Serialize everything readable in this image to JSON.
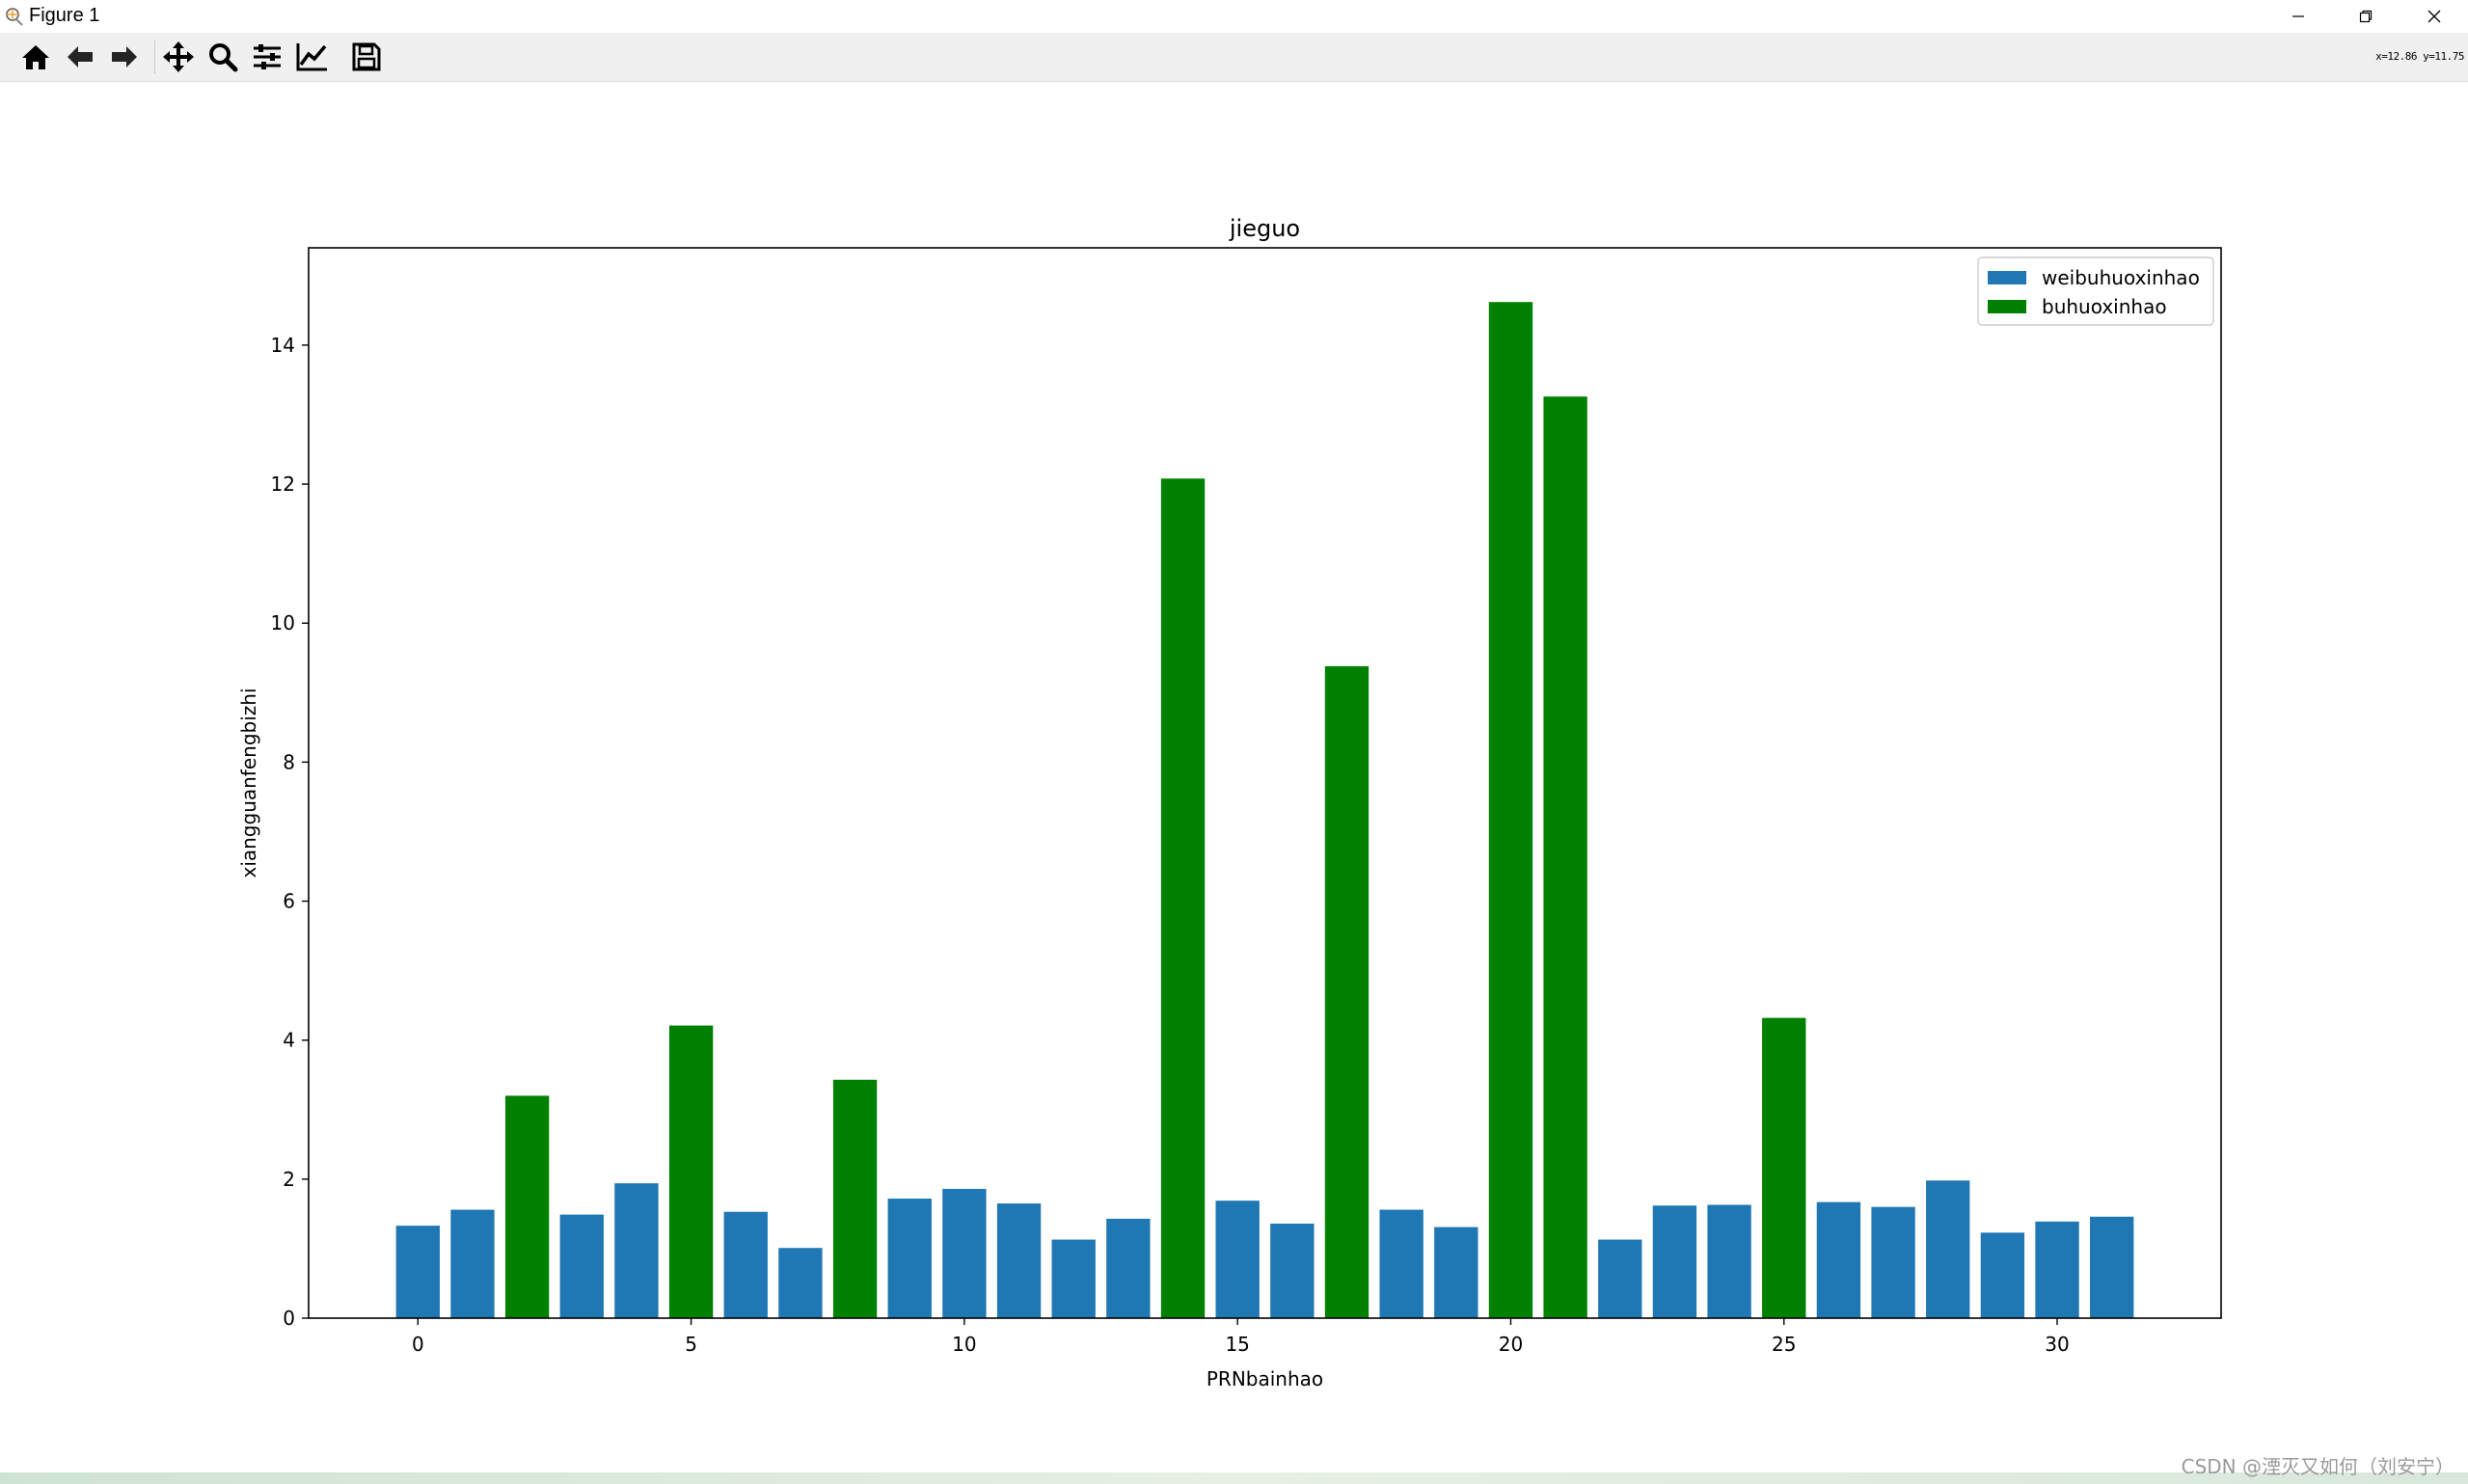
{
  "window": {
    "title": "Figure 1",
    "controls": {
      "minimize": "─",
      "restore": "❐",
      "close": "✕"
    }
  },
  "toolbar": {
    "buttons": [
      {
        "name": "home-icon"
      },
      {
        "name": "back-arrow-icon"
      },
      {
        "name": "forward-arrow-icon"
      },
      {
        "name": "pan-move-icon"
      },
      {
        "name": "zoom-magnifier-icon"
      },
      {
        "name": "subplots-sliders-icon"
      },
      {
        "name": "edit-axes-line-icon"
      },
      {
        "name": "save-floppy-icon"
      }
    ],
    "coordinates": "x=12.86  y=11.75"
  },
  "watermark": "CSDN @湮灭又如何（刘安宁）",
  "chart_data": {
    "type": "bar",
    "title": "jieguo",
    "xlabel": "PRNbainhao",
    "ylabel": "xiangguanfengbizhi",
    "xlim": [
      -2,
      33
    ],
    "ylim": [
      0,
      15.4
    ],
    "xticks": [
      0,
      5,
      10,
      15,
      20,
      25,
      30
    ],
    "yticks": [
      0,
      2,
      4,
      6,
      8,
      10,
      12,
      14
    ],
    "legend": {
      "placement": "top-right"
    },
    "grid": false,
    "series": [
      {
        "name": "weibuhuoxinhao",
        "color": "#1f77b4",
        "x": [
          0,
          1,
          3,
          4,
          6,
          7,
          9,
          10,
          11,
          12,
          13,
          15,
          16,
          18,
          19,
          22,
          23,
          24,
          26,
          27,
          28,
          29,
          30,
          31
        ],
        "values": [
          1.33,
          1.56,
          1.49,
          1.94,
          1.53,
          1.01,
          1.72,
          1.86,
          1.65,
          1.13,
          1.43,
          1.69,
          1.36,
          1.56,
          1.31,
          1.13,
          1.62,
          1.63,
          1.67,
          1.6,
          1.98,
          1.23,
          1.39,
          1.46
        ]
      },
      {
        "name": "buhuoxinhao",
        "color": "#008000",
        "x": [
          2,
          5,
          8,
          14,
          17,
          20,
          21,
          25
        ],
        "values": [
          3.2,
          4.21,
          3.43,
          12.08,
          9.38,
          14.62,
          13.26,
          4.32
        ]
      }
    ]
  }
}
